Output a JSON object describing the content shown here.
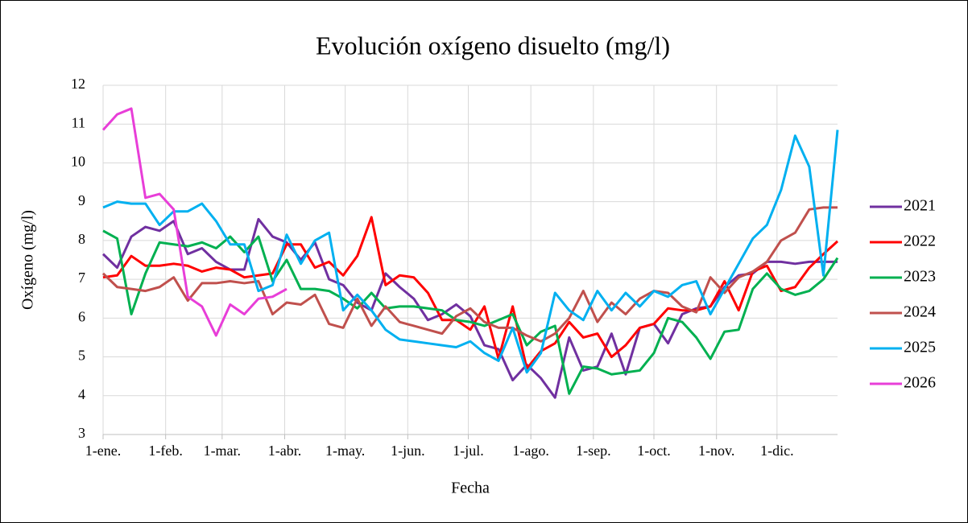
{
  "chart_data": {
    "type": "line",
    "title": "Evolución oxígeno disuelto (mg/l)",
    "x_label": "Fecha",
    "y_label": "Oxígeno (mg/l)",
    "x": [
      0,
      7,
      14,
      21,
      28,
      35,
      42,
      49,
      56,
      63,
      70,
      77,
      84,
      91,
      98,
      105,
      112,
      119,
      126,
      133,
      140,
      147,
      154,
      161,
      168,
      175,
      182,
      189,
      196,
      203,
      210,
      217,
      224,
      231,
      238,
      245,
      252,
      259,
      266,
      273,
      280,
      287,
      294,
      301,
      308,
      315,
      322,
      329,
      336,
      343,
      350,
      357,
      364
    ],
    "xlim": [
      0,
      364
    ],
    "xticks": [
      {
        "value": 0,
        "label": "1-ene."
      },
      {
        "value": 31,
        "label": "1-feb."
      },
      {
        "value": 59,
        "label": "1-mar."
      },
      {
        "value": 90,
        "label": "1-abr."
      },
      {
        "value": 120,
        "label": "1-may."
      },
      {
        "value": 151,
        "label": "1-jun."
      },
      {
        "value": 181,
        "label": "1-jul."
      },
      {
        "value": 212,
        "label": "1-ago."
      },
      {
        "value": 243,
        "label": "1-sep."
      },
      {
        "value": 273,
        "label": "1-oct."
      },
      {
        "value": 304,
        "label": "1-nov."
      },
      {
        "value": 334,
        "label": "1-dic."
      }
    ],
    "ylim": [
      3,
      12
    ],
    "yticks": [
      3,
      4,
      5,
      6,
      7,
      8,
      9,
      10,
      11,
      12
    ],
    "grid": true,
    "legend": "right",
    "series": [
      {
        "name": "2021",
        "color": "#7030a0",
        "values": [
          7.65,
          7.3,
          8.1,
          8.35,
          8.25,
          8.5,
          7.65,
          7.8,
          7.45,
          7.25,
          7.25,
          8.55,
          8.1,
          7.95,
          7.5,
          7.95,
          7.0,
          6.85,
          6.4,
          6.2,
          7.15,
          6.8,
          6.5,
          5.95,
          6.1,
          6.35,
          6.05,
          5.3,
          5.2,
          4.4,
          4.8,
          4.45,
          3.95,
          5.5,
          4.65,
          4.75,
          5.6,
          4.55,
          5.75,
          5.85,
          5.35,
          6.1,
          6.25,
          6.3,
          6.8,
          7.1,
          7.15,
          7.45,
          7.45,
          7.4,
          7.45,
          7.45,
          7.45
        ]
      },
      {
        "name": "2022",
        "color": "#ff0000",
        "values": [
          7.05,
          7.1,
          7.6,
          7.35,
          7.35,
          7.4,
          7.35,
          7.2,
          7.3,
          7.25,
          7.05,
          7.1,
          7.15,
          7.9,
          7.9,
          7.3,
          7.45,
          7.1,
          7.6,
          8.6,
          6.85,
          7.1,
          7.05,
          6.65,
          5.95,
          5.95,
          5.7,
          6.3,
          4.95,
          6.3,
          4.7,
          5.15,
          5.35,
          5.9,
          5.5,
          5.6,
          5.0,
          5.3,
          5.75,
          5.85,
          6.25,
          6.2,
          6.2,
          6.3,
          6.95,
          6.2,
          7.2,
          7.35,
          6.7,
          6.8,
          7.3,
          7.65,
          7.98
        ]
      },
      {
        "name": "2023",
        "color": "#00b050",
        "values": [
          8.25,
          8.05,
          6.1,
          7.15,
          7.95,
          7.9,
          7.85,
          7.95,
          7.8,
          8.1,
          7.7,
          8.1,
          6.95,
          7.5,
          6.75,
          6.75,
          6.7,
          6.5,
          6.25,
          6.65,
          6.25,
          6.3,
          6.3,
          6.25,
          6.2,
          5.95,
          5.9,
          5.8,
          5.95,
          6.1,
          5.3,
          5.65,
          5.8,
          4.05,
          4.75,
          4.7,
          4.55,
          4.6,
          4.65,
          5.1,
          6.0,
          5.9,
          5.5,
          4.95,
          5.65,
          5.7,
          6.75,
          7.15,
          6.75,
          6.6,
          6.7,
          7.0,
          7.55
        ]
      },
      {
        "name": "2024",
        "color": "#c0504d",
        "values": [
          7.15,
          6.8,
          6.75,
          6.7,
          6.8,
          7.05,
          6.45,
          6.9,
          6.9,
          6.95,
          6.9,
          6.95,
          6.1,
          6.4,
          6.35,
          6.6,
          5.85,
          5.75,
          6.5,
          5.8,
          6.3,
          5.9,
          5.8,
          5.7,
          5.6,
          6.05,
          6.25,
          5.9,
          5.75,
          5.75,
          5.55,
          5.4,
          5.6,
          6.0,
          6.7,
          5.9,
          6.4,
          6.1,
          6.5,
          6.7,
          6.65,
          6.3,
          6.15,
          7.05,
          6.65,
          7.05,
          7.2,
          7.45,
          8.0,
          8.2,
          8.8,
          8.85,
          8.85
        ]
      },
      {
        "name": "2025",
        "color": "#00b0f0",
        "values": [
          8.85,
          9.0,
          8.95,
          8.95,
          8.4,
          8.75,
          8.75,
          8.95,
          8.5,
          7.9,
          7.9,
          6.7,
          6.85,
          8.15,
          7.4,
          8.0,
          8.2,
          6.2,
          6.6,
          6.2,
          5.7,
          5.45,
          5.4,
          5.35,
          5.3,
          5.25,
          5.4,
          5.1,
          4.9,
          5.75,
          4.6,
          5.1,
          6.65,
          6.2,
          5.95,
          6.7,
          6.2,
          6.65,
          6.3,
          6.7,
          6.55,
          6.85,
          6.95,
          6.1,
          6.75,
          7.4,
          8.05,
          8.4,
          9.3,
          10.7,
          9.9,
          7.1,
          10.85
        ]
      },
      {
        "name": "2026",
        "color": "#e83ed8",
        "values": [
          10.85,
          11.25,
          11.4,
          9.1,
          9.2,
          8.8,
          6.55,
          6.3,
          5.55,
          6.35,
          6.1,
          6.5,
          6.55,
          6.75,
          null,
          null,
          null,
          null,
          null,
          null,
          null,
          null,
          null,
          null,
          null,
          null,
          null,
          null,
          null,
          null,
          null,
          null,
          null,
          null,
          null,
          null,
          null,
          null,
          null,
          null,
          null,
          null,
          null,
          null,
          null,
          null,
          null,
          null,
          null,
          null,
          null,
          null,
          null
        ]
      }
    ]
  }
}
